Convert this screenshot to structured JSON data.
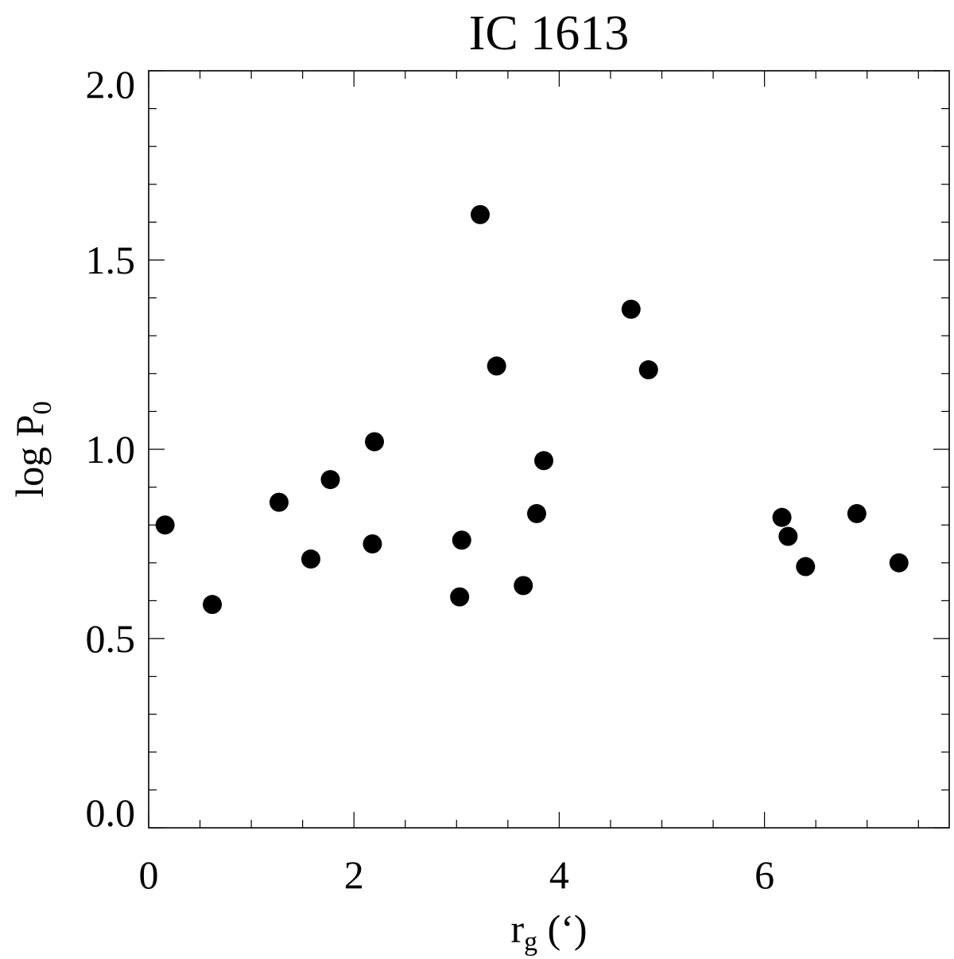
{
  "chart_data": {
    "type": "scatter",
    "title": "IC 1613",
    "xlabel": {
      "main": "r",
      "sub": "g",
      "rest": " (‘)"
    },
    "ylabel": {
      "main": "log P",
      "sub": "0"
    },
    "xlim": [
      0,
      7.8
    ],
    "ylim": [
      0.0,
      2.0
    ],
    "xticks": [
      0,
      2,
      4,
      6
    ],
    "xtick_labels": [
      "0",
      "2",
      "4",
      "6"
    ],
    "xminor_step": 0.5,
    "yticks": [
      0.0,
      0.5,
      1.0,
      1.5,
      2.0
    ],
    "ytick_labels": [
      "0.0",
      "0.5",
      "1.0",
      "1.5",
      "2.0"
    ],
    "yminor_step": 0.1,
    "grid": false,
    "marker_color": "#000000",
    "points": [
      {
        "x": 0.16,
        "y": 0.8
      },
      {
        "x": 0.62,
        "y": 0.59
      },
      {
        "x": 1.27,
        "y": 0.86
      },
      {
        "x": 1.58,
        "y": 0.71
      },
      {
        "x": 1.77,
        "y": 0.92
      },
      {
        "x": 2.18,
        "y": 0.75
      },
      {
        "x": 2.2,
        "y": 1.02
      },
      {
        "x": 3.03,
        "y": 0.61
      },
      {
        "x": 3.05,
        "y": 0.76
      },
      {
        "x": 3.23,
        "y": 1.62
      },
      {
        "x": 3.39,
        "y": 1.22
      },
      {
        "x": 3.65,
        "y": 0.64
      },
      {
        "x": 3.78,
        "y": 0.83
      },
      {
        "x": 3.85,
        "y": 0.97
      },
      {
        "x": 4.7,
        "y": 1.37
      },
      {
        "x": 4.87,
        "y": 1.21
      },
      {
        "x": 6.17,
        "y": 0.82
      },
      {
        "x": 6.23,
        "y": 0.77
      },
      {
        "x": 6.4,
        "y": 0.69
      },
      {
        "x": 6.9,
        "y": 0.83
      },
      {
        "x": 7.31,
        "y": 0.7
      }
    ]
  }
}
